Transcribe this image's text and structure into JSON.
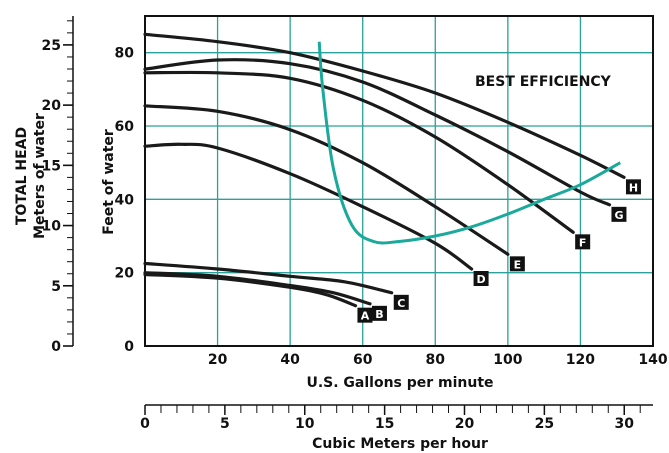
{
  "chart_data": {
    "type": "line",
    "title": "",
    "annotation": "BEST EFFICIENCY",
    "x": {
      "label": "U.S. Gallons per minute",
      "range": [
        0,
        140
      ],
      "ticks": [
        20,
        40,
        60,
        80,
        100,
        120,
        140
      ]
    },
    "y": {
      "label": "Feet of water",
      "range": [
        0,
        90
      ],
      "ticks": [
        0,
        20,
        40,
        60,
        80
      ]
    },
    "secondary_x": {
      "label": "Cubic Meters per hour",
      "range": [
        0,
        31.8
      ],
      "ticks": [
        0,
        5,
        10,
        15,
        20,
        25,
        30
      ]
    },
    "secondary_y": {
      "label_line1": "TOTAL HEAD",
      "label_line2": "Meters of water",
      "range": [
        0,
        27.4
      ],
      "ticks": [
        0,
        5,
        10,
        15,
        20,
        25
      ]
    },
    "grid": true,
    "series": [
      {
        "name": "A",
        "color": "#1a1a1a",
        "x": [
          0,
          20,
          40,
          50,
          58
        ],
        "y": [
          19.5,
          18.5,
          16,
          14,
          11
        ]
      },
      {
        "name": "B",
        "color": "#1a1a1a",
        "x": [
          0,
          20,
          40,
          52,
          62
        ],
        "y": [
          20,
          19,
          16.5,
          14.5,
          11.5
        ]
      },
      {
        "name": "C",
        "color": "#1a1a1a",
        "x": [
          0,
          20,
          40,
          55,
          68
        ],
        "y": [
          22.5,
          21,
          19,
          17.5,
          14.5
        ]
      },
      {
        "name": "D",
        "color": "#1a1a1a",
        "x": [
          0,
          10,
          20,
          40,
          60,
          80,
          90
        ],
        "y": [
          54.5,
          55,
          54,
          47,
          38,
          28,
          21
        ]
      },
      {
        "name": "E",
        "color": "#1a1a1a",
        "x": [
          0,
          20,
          40,
          60,
          80,
          100
        ],
        "y": [
          65.5,
          64,
          59,
          50,
          38,
          25
        ]
      },
      {
        "name": "F",
        "color": "#1a1a1a",
        "x": [
          0,
          20,
          40,
          60,
          80,
          100,
          118
        ],
        "y": [
          74.5,
          74.5,
          73,
          67,
          57,
          44,
          31
        ]
      },
      {
        "name": "G",
        "color": "#1a1a1a",
        "x": [
          0,
          20,
          40,
          60,
          80,
          100,
          120,
          128
        ],
        "y": [
          75.5,
          78,
          77,
          72,
          63,
          53,
          42,
          38.5
        ]
      },
      {
        "name": "H",
        "color": "#1a1a1a",
        "x": [
          0,
          20,
          40,
          60,
          80,
          100,
          120,
          132
        ],
        "y": [
          85,
          83,
          80,
          75,
          69,
          61,
          52,
          46
        ]
      }
    ],
    "efficiency_curve": {
      "color": "#1aa99a",
      "x": [
        48,
        49,
        52,
        57,
        63,
        70,
        80,
        90,
        100,
        110,
        120,
        131
      ],
      "y": [
        83,
        70,
        48,
        33,
        28.5,
        28.5,
        30,
        32.5,
        36,
        40,
        44,
        50
      ]
    },
    "series_label_style": {
      "bg": "#111111",
      "fg": "#ffffff"
    },
    "grid_color": "#2aa19a"
  }
}
